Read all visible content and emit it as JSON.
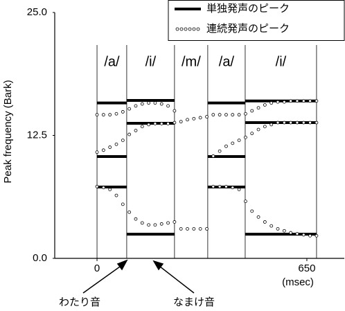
{
  "chart_data": {
    "type": "scatter",
    "y_label": "Peak frequency (Bark)",
    "x_label": "(msec)",
    "xlim": [
      -131,
      766
    ],
    "ylim": [
      0,
      25
    ],
    "xticks": [
      0,
      650
    ],
    "yticks": [
      {
        "value": 0,
        "label": "0.0"
      },
      12.5,
      {
        "value": 25,
        "label": "25.0"
      }
    ],
    "boundaries": [
      0,
      92,
      240,
      343,
      459,
      680
    ],
    "phonemes": [
      "/a/",
      "/i/",
      "/m/",
      "/a/",
      "/i/"
    ],
    "isolated": {
      "name": "単独発声のピーク",
      "color": "#000000",
      "x_start": [
        0,
        0,
        0,
        92,
        92,
        92,
        343,
        343,
        343,
        459,
        459,
        459
      ],
      "x_end": [
        92,
        92,
        92,
        240,
        240,
        240,
        459,
        459,
        459,
        680,
        680,
        680
      ],
      "values": [
        15.8,
        10.35,
        7.25,
        16.06,
        13.73,
        2.46,
        15.8,
        10.35,
        7.25,
        16.0,
        13.8,
        2.46
      ]
    },
    "continuous": {
      "name": "連続発声のピーク",
      "color": "#000000",
      "x": [
        0,
        20,
        40,
        60,
        80,
        100,
        120,
        140,
        160,
        180,
        200,
        220,
        240,
        260,
        280,
        300,
        320,
        340,
        360,
        380,
        400,
        420,
        440,
        460,
        480,
        500,
        520,
        540,
        560,
        580,
        600,
        620,
        640,
        660,
        680
      ],
      "tracks": [
        [
          14.6,
          14.6,
          14.6,
          14.7,
          14.9,
          15.2,
          15.5,
          15.7,
          15.8,
          15.8,
          15.7,
          15.5,
          15.0,
          null,
          null,
          null,
          null,
          null,
          14.6,
          14.6,
          14.6,
          14.6,
          14.6,
          14.7,
          15.0,
          15.3,
          15.6,
          15.8,
          15.9,
          15.9,
          16.0,
          16.0,
          16.0,
          16.0,
          16.0
        ],
        [
          10.8,
          11.0,
          11.3,
          11.6,
          12.0,
          12.6,
          13.0,
          13.4,
          13.6,
          13.7,
          13.7,
          13.7,
          13.8,
          13.9,
          14.1,
          14.2,
          14.3,
          14.4,
          10.4,
          10.9,
          11.4,
          11.7,
          12.0,
          12.3,
          12.7,
          13.1,
          13.4,
          13.6,
          13.8,
          13.8,
          13.8,
          13.8,
          13.8,
          13.8,
          13.8
        ],
        [
          7.3,
          7.2,
          7.0,
          6.4,
          5.5,
          4.7,
          4.0,
          3.6,
          3.4,
          3.4,
          3.5,
          3.6,
          3.7,
          3.0,
          3.0,
          3.0,
          3.0,
          3.0,
          7.3,
          7.3,
          7.3,
          7.2,
          7.0,
          5.8,
          4.8,
          4.2,
          3.7,
          3.3,
          3.0,
          2.8,
          2.6,
          2.5,
          2.4,
          2.3,
          2.3
        ]
      ]
    },
    "annotations": [
      "わたり音",
      "なまけ音"
    ]
  }
}
